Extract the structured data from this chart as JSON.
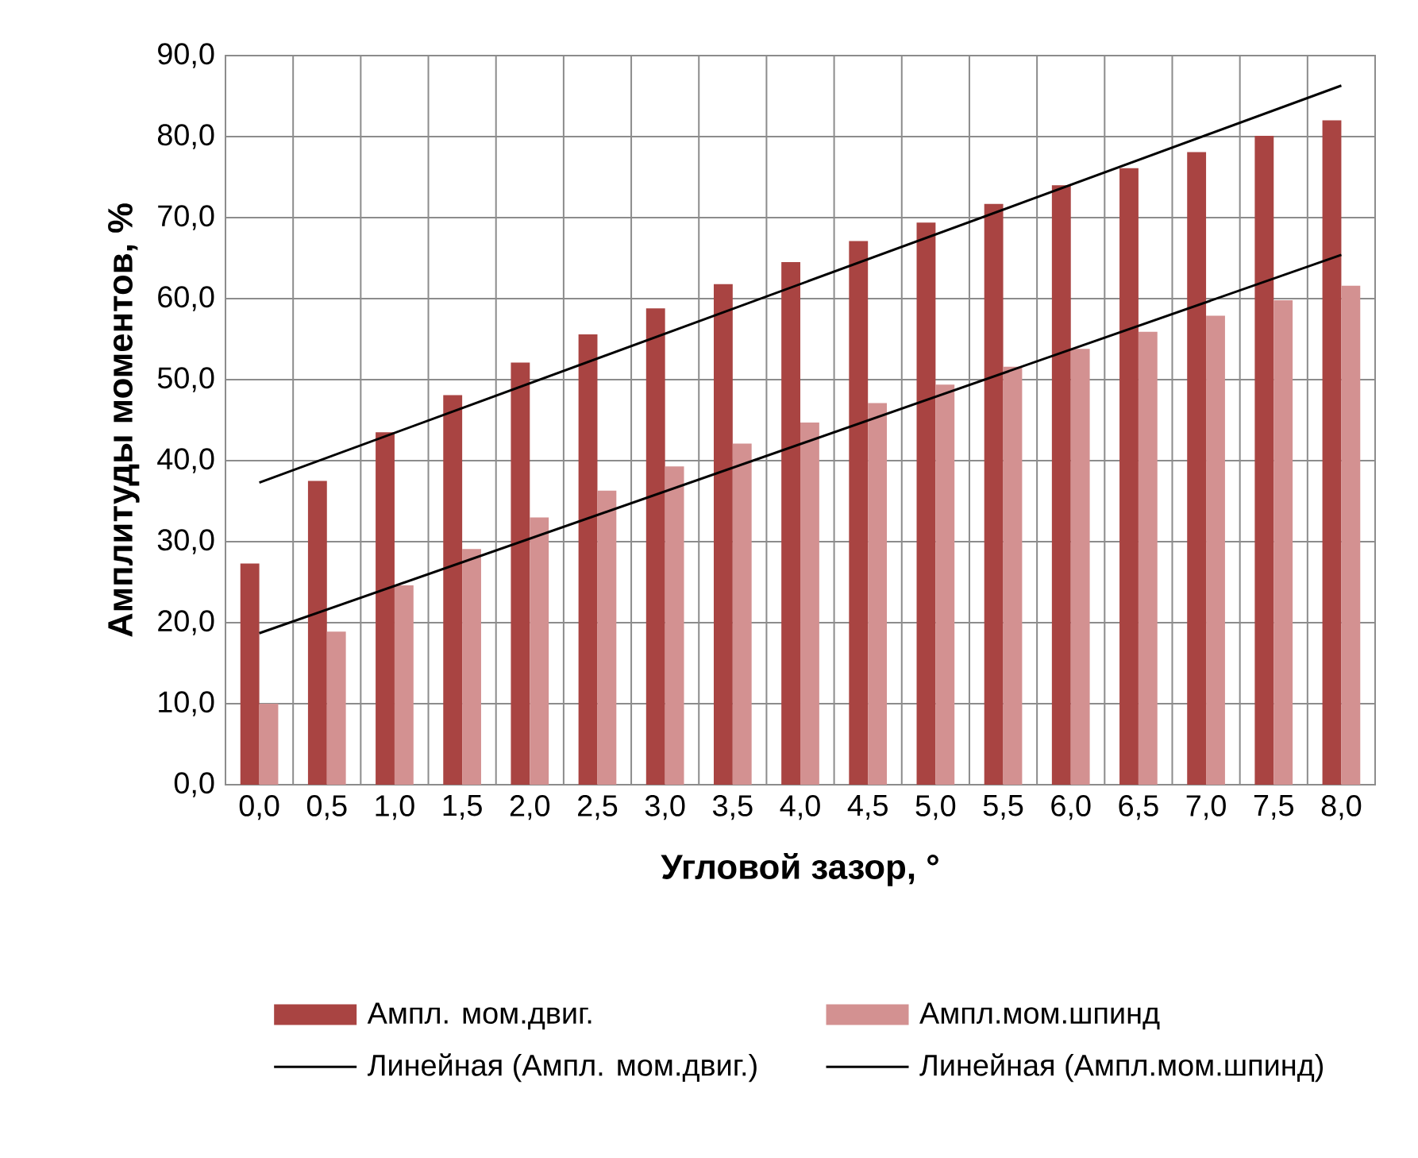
{
  "chart_data": {
    "type": "bar",
    "xlabel": "Угловой зазор, °",
    "ylabel": "Амплитуды моментов, %",
    "categories": [
      "0,0",
      "0,5",
      "1,0",
      "1,5",
      "2,0",
      "2,5",
      "3,0",
      "3,5",
      "4,0",
      "4,5",
      "5,0",
      "5,5",
      "6,0",
      "6,5",
      "7,0",
      "7,5",
      "8,0"
    ],
    "series": [
      {
        "name": "Ампл. мом.двиг.",
        "color": "#a94442",
        "values": [
          27.3,
          37.5,
          43.5,
          48.1,
          52.1,
          55.6,
          58.8,
          61.8,
          64.5,
          67.1,
          69.4,
          71.7,
          74.0,
          76.1,
          78.1,
          80.1,
          82.0
        ]
      },
      {
        "name": "Ампл.мом.шпинд",
        "color": "#d39191",
        "values": [
          10.0,
          18.9,
          24.6,
          29.1,
          33.0,
          36.3,
          39.3,
          42.1,
          44.7,
          47.1,
          49.4,
          51.6,
          53.8,
          55.9,
          57.9,
          59.8,
          61.6
        ]
      },
      {
        "name": "Линейная (Ампл. мом.двиг.)",
        "type": "line",
        "color": "#000000",
        "x": [
          "0,0",
          "8,0"
        ],
        "values": [
          37.3,
          86.3
        ]
      },
      {
        "name": "Линейная (Ампл.мом.шпинд)",
        "type": "line",
        "color": "#000000",
        "x": [
          "0,0",
          "8,0"
        ],
        "values": [
          18.7,
          65.4
        ]
      }
    ],
    "ylim": [
      0,
      90
    ],
    "yticks": [
      {
        "value": 0,
        "label": "0,0"
      },
      {
        "value": 10,
        "label": "10,0"
      },
      {
        "value": 20,
        "label": "20,0"
      },
      {
        "value": 30,
        "label": "30,0"
      },
      {
        "value": 40,
        "label": "40,0"
      },
      {
        "value": 50,
        "label": "50,0"
      },
      {
        "value": 60,
        "label": "60,0"
      },
      {
        "value": 70,
        "label": "70,0"
      },
      {
        "value": 80,
        "label": "80,0"
      },
      {
        "value": 90,
        "label": "90,0"
      }
    ],
    "grid": true,
    "legend": "bottom"
  }
}
